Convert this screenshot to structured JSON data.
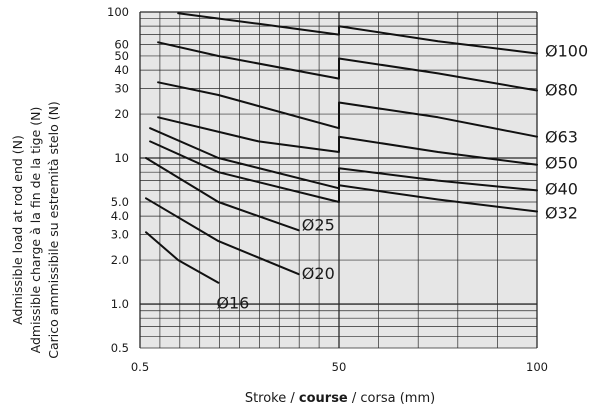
{
  "chart_data": {
    "type": "line",
    "xlabel": [
      "Stroke / ",
      "course",
      " / corsa (mm)"
    ],
    "ylabel": [
      "Admissible load at rod end (N)",
      "Admissible charge à la fin de la tige (N)",
      "Carico ammissibile su estremità stelo (N)"
    ],
    "x_scale": "segmented",
    "x_ticks": [
      {
        "value": 0.5,
        "label": "0.5"
      },
      {
        "value": 50,
        "label": "50"
      },
      {
        "value": 100,
        "label": "100"
      }
    ],
    "y_scale": "log",
    "ylim": [
      0.5,
      100
    ],
    "y_ticks": [
      {
        "value": 0.5,
        "label": "0.5"
      },
      {
        "value": 1,
        "label": "1.0"
      },
      {
        "value": 2,
        "label": "2.0"
      },
      {
        "value": 3,
        "label": "3.0"
      },
      {
        "value": 4,
        "label": "4.0"
      },
      {
        "value": 5,
        "label": "5.0"
      },
      {
        "value": 10,
        "label": "10"
      },
      {
        "value": 20,
        "label": "20"
      },
      {
        "value": 30,
        "label": "30"
      },
      {
        "value": 40,
        "label": "40"
      },
      {
        "value": 50,
        "label": "50"
      },
      {
        "value": 60,
        "label": "60"
      },
      {
        "value": 100,
        "label": "100"
      }
    ],
    "grid": true,
    "series": [
      {
        "name": "Ø100",
        "points": [
          [
            10,
            98
          ],
          [
            30,
            83
          ],
          [
            50,
            70
          ],
          [
            50,
            80
          ],
          [
            75,
            63
          ],
          [
            100,
            52
          ]
        ]
      },
      {
        "name": "Ø80",
        "points": [
          [
            5,
            62
          ],
          [
            20,
            50
          ],
          [
            50,
            35
          ],
          [
            50,
            48
          ],
          [
            75,
            38
          ],
          [
            100,
            29
          ]
        ]
      },
      {
        "name": "Ø63",
        "points": [
          [
            5,
            33
          ],
          [
            20,
            27
          ],
          [
            50,
            16
          ],
          [
            50,
            24
          ],
          [
            75,
            19
          ],
          [
            100,
            14
          ]
        ]
      },
      {
        "name": "Ø50",
        "points": [
          [
            5,
            19
          ],
          [
            30,
            13
          ],
          [
            50,
            11
          ],
          [
            50,
            14
          ],
          [
            75,
            11
          ],
          [
            100,
            9
          ]
        ]
      },
      {
        "name": "Ø40",
        "points": [
          [
            3,
            16
          ],
          [
            20,
            10
          ],
          [
            50,
            6.2
          ],
          [
            50,
            8.5
          ],
          [
            75,
            7
          ],
          [
            100,
            6
          ]
        ]
      },
      {
        "name": "Ø32",
        "points": [
          [
            3,
            13
          ],
          [
            20,
            8
          ],
          [
            50,
            5
          ],
          [
            50,
            6.5
          ],
          [
            75,
            5.2
          ],
          [
            100,
            4.3
          ]
        ]
      },
      {
        "name": "Ø25",
        "points": [
          [
            2,
            10
          ],
          [
            20,
            5
          ],
          [
            40,
            3.2
          ]
        ]
      },
      {
        "name": "Ø20",
        "points": [
          [
            2,
            5.3
          ],
          [
            20,
            2.7
          ],
          [
            40,
            1.6
          ]
        ]
      },
      {
        "name": "Ø16",
        "points": [
          [
            2,
            3.1
          ],
          [
            10,
            2
          ],
          [
            20,
            1.4
          ]
        ]
      }
    ]
  }
}
